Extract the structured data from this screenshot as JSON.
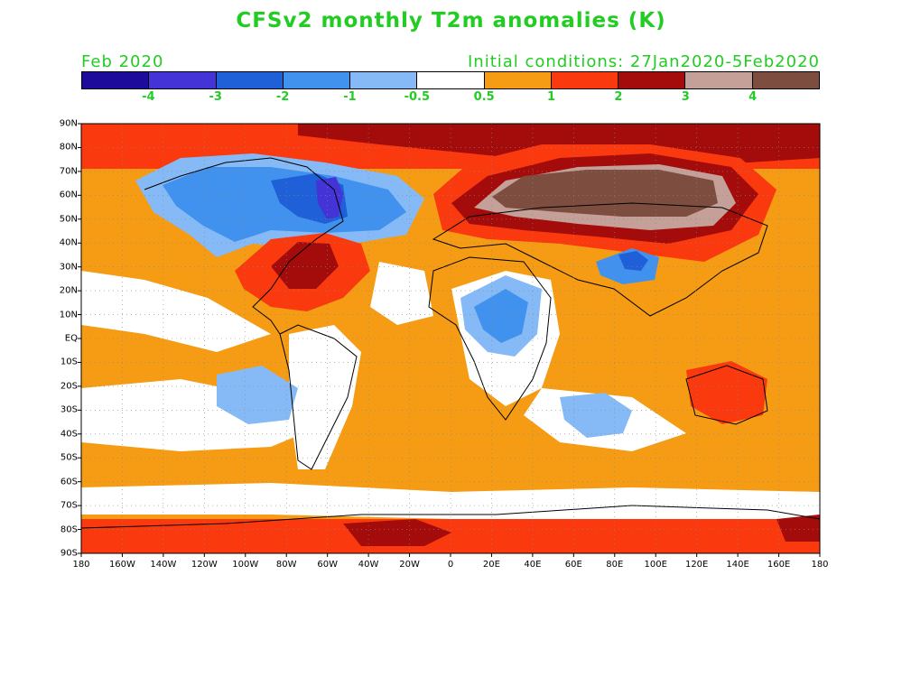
{
  "title": "CFSv2 monthly T2m anomalies (K)",
  "valid_month": "Feb 2020",
  "initial_conditions": "Initial conditions: 27Jan2020-5Feb2020",
  "text_color": "#22cc22",
  "colorbar": {
    "colors": [
      "#1d0c9c",
      "#4433d6",
      "#1f5fd8",
      "#4192ee",
      "#86baf6",
      "#ffffff",
      "#f59c14",
      "#fa3a0e",
      "#a40c0c",
      "#c4a098",
      "#7d4e40"
    ],
    "labels": [
      "-4",
      "-3",
      "-2",
      "-1",
      "-0.5",
      "0.5",
      "1",
      "2",
      "3",
      "4"
    ]
  },
  "map": {
    "lat_labels": [
      "90N",
      "80N",
      "70N",
      "60N",
      "50N",
      "40N",
      "30N",
      "20N",
      "10N",
      "EQ",
      "10S",
      "20S",
      "30S",
      "40S",
      "50S",
      "60S",
      "70S",
      "80S",
      "90S"
    ],
    "lon_labels": [
      "180",
      "160W",
      "140W",
      "120W",
      "100W",
      "80W",
      "60W",
      "40W",
      "20W",
      "0",
      "20E",
      "40E",
      "60E",
      "80E",
      "100E",
      "120E",
      "140E",
      "160E",
      "180"
    ],
    "background_fill": "#f59c14"
  }
}
